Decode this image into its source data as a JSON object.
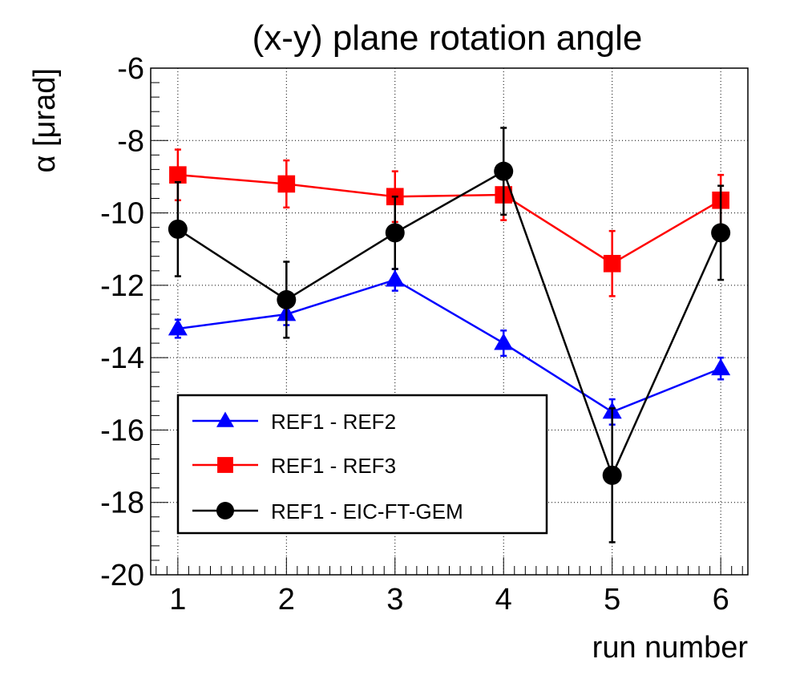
{
  "chart_data": {
    "type": "line",
    "title": "(x-y) plane rotation angle",
    "xlabel": "run number",
    "ylabel": "α [μrad]",
    "xlim": [
      0.75,
      6.25
    ],
    "ylim": [
      -20,
      -6
    ],
    "x_ticks": [
      1,
      2,
      3,
      4,
      5,
      6
    ],
    "y_ticks": [
      -20,
      -18,
      -16,
      -14,
      -12,
      -10,
      -8,
      -6
    ],
    "grid": true,
    "legend_position": "bottom-left",
    "series": [
      {
        "name": "REF1 - REF2",
        "color": "#0000ff",
        "marker": "triangle",
        "x": [
          1,
          2,
          3,
          4,
          5,
          6
        ],
        "values": [
          -13.2,
          -12.8,
          -11.85,
          -13.6,
          -15.5,
          -14.3
        ],
        "errors": [
          0.25,
          0.3,
          0.3,
          0.35,
          0.35,
          0.3
        ]
      },
      {
        "name": "REF1 - REF3",
        "color": "#ff0000",
        "marker": "square",
        "x": [
          1,
          2,
          3,
          4,
          5,
          6
        ],
        "values": [
          -8.95,
          -9.2,
          -9.55,
          -9.5,
          -11.4,
          -9.65
        ],
        "errors": [
          0.7,
          0.65,
          0.7,
          0.7,
          0.9,
          0.7
        ]
      },
      {
        "name": "REF1 - EIC-FT-GEM",
        "color": "#000000",
        "marker": "circle",
        "x": [
          1,
          2,
          3,
          4,
          5,
          6
        ],
        "values": [
          -10.45,
          -12.4,
          -10.55,
          -8.85,
          -17.25,
          -10.55
        ],
        "errors": [
          1.3,
          1.05,
          1.0,
          1.2,
          1.85,
          1.3
        ]
      }
    ]
  }
}
